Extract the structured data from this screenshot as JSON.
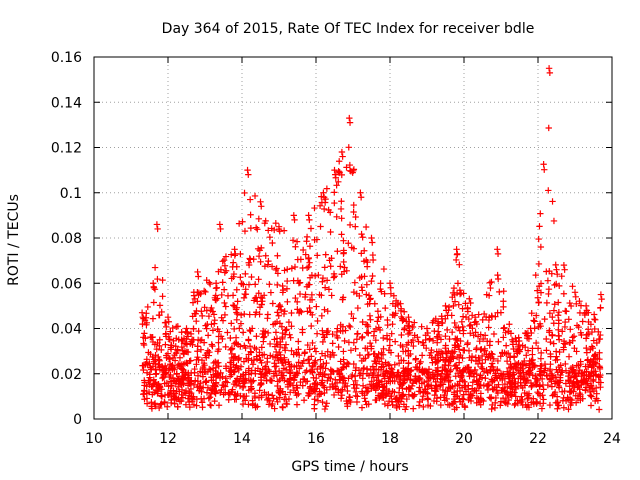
{
  "chart_data": {
    "type": "scatter",
    "title": "Day 364 of 2015, Rate Of TEC Index for receiver bdle",
    "xlabel": "GPS time / hours",
    "ylabel": "ROTI / TECUs",
    "xlim": [
      10,
      24
    ],
    "ylim": [
      0,
      0.16
    ],
    "xticks": [
      "10",
      "12",
      "14",
      "16",
      "18",
      "20",
      "22",
      "24"
    ],
    "yticks": [
      "0",
      "0.02",
      "0.04",
      "0.06",
      "0.08",
      "0.1",
      "0.12",
      "0.14",
      "0.16"
    ],
    "grid": true,
    "marker": "+",
    "color": "#ff0000",
    "series": [
      {
        "name": "ROTI",
        "envelope": [
          {
            "x": 11.3,
            "y": 0.047
          },
          {
            "x": 11.6,
            "y": 0.06
          },
          {
            "x": 11.7,
            "y": 0.086
          },
          {
            "x": 12.0,
            "y": 0.045
          },
          {
            "x": 12.5,
            "y": 0.04
          },
          {
            "x": 12.8,
            "y": 0.065
          },
          {
            "x": 13.3,
            "y": 0.06
          },
          {
            "x": 13.4,
            "y": 0.086
          },
          {
            "x": 13.8,
            "y": 0.075
          },
          {
            "x": 14.15,
            "y": 0.11
          },
          {
            "x": 14.5,
            "y": 0.096
          },
          {
            "x": 15.0,
            "y": 0.085
          },
          {
            "x": 15.4,
            "y": 0.09
          },
          {
            "x": 15.8,
            "y": 0.09
          },
          {
            "x": 16.2,
            "y": 0.1
          },
          {
            "x": 16.5,
            "y": 0.11
          },
          {
            "x": 16.7,
            "y": 0.118
          },
          {
            "x": 16.9,
            "y": 0.133
          },
          {
            "x": 17.2,
            "y": 0.1
          },
          {
            "x": 17.5,
            "y": 0.08
          },
          {
            "x": 18.0,
            "y": 0.06
          },
          {
            "x": 18.5,
            "y": 0.045
          },
          {
            "x": 19.0,
            "y": 0.04
          },
          {
            "x": 19.5,
            "y": 0.05
          },
          {
            "x": 19.8,
            "y": 0.075
          },
          {
            "x": 20.3,
            "y": 0.045
          },
          {
            "x": 20.9,
            "y": 0.075
          },
          {
            "x": 21.3,
            "y": 0.035
          },
          {
            "x": 21.8,
            "y": 0.04
          },
          {
            "x": 22.3,
            "y": 0.155
          },
          {
            "x": 22.5,
            "y": 0.066
          },
          {
            "x": 22.7,
            "y": 0.068
          },
          {
            "x": 23.0,
            "y": 0.056
          },
          {
            "x": 23.3,
            "y": 0.05
          },
          {
            "x": 23.7,
            "y": 0.055
          }
        ]
      }
    ]
  }
}
